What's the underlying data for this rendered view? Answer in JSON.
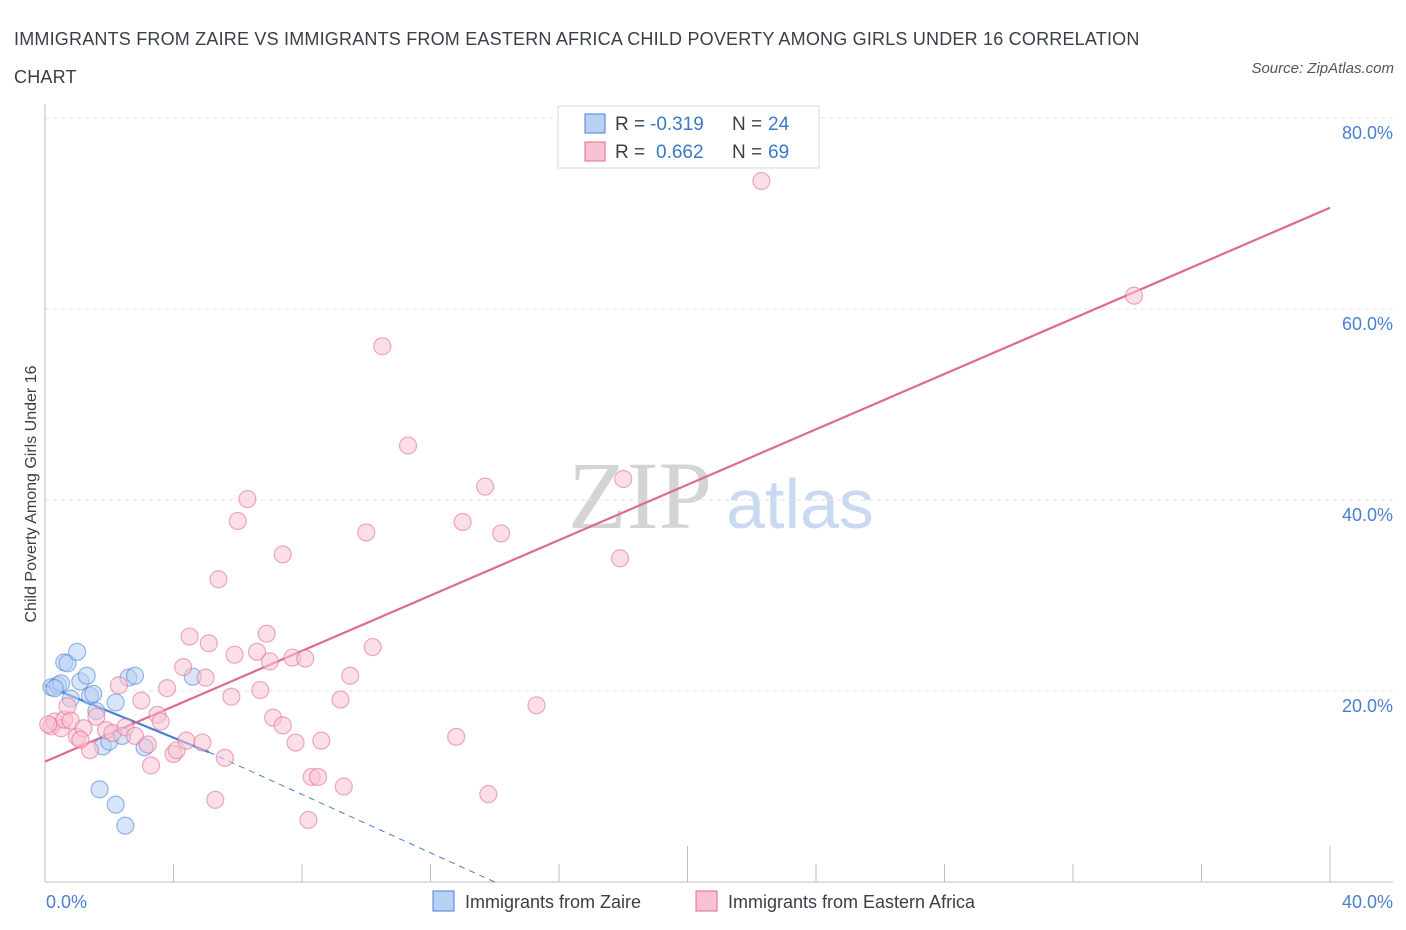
{
  "title": "IMMIGRANTS FROM ZAIRE VS IMMIGRANTS FROM EASTERN AFRICA CHILD POVERTY AMONG GIRLS UNDER 16 CORRELATION CHART",
  "source": "Source: ZipAtlas.com",
  "watermark": {
    "zip": "ZIP",
    "atlas": "atlas"
  },
  "chart_data": {
    "type": "scatter",
    "title": "IMMIGRANTS FROM ZAIRE VS IMMIGRANTS FROM EASTERN AFRICA CHILD POVERTY AMONG GIRLS UNDER 16 CORRELATION CHART",
    "xlabel": "",
    "ylabel": "Child Poverty Among Girls Under 16",
    "xlim": [
      0,
      40
    ],
    "ylim": [
      0,
      80
    ],
    "x_tick_labels": {
      "min": "0.0%",
      "max": "40.0%"
    },
    "y_ticks": [
      {
        "value": 20,
        "label": "20.0%"
      },
      {
        "value": 40,
        "label": "40.0%"
      },
      {
        "value": 60,
        "label": "60.0%"
      },
      {
        "value": 80,
        "label": "80.0%"
      }
    ],
    "legend_stats": [
      {
        "r_label": "R =",
        "r_value": "-0.319",
        "n_label": "N =",
        "n_value": "24"
      },
      {
        "r_label": "R =",
        "r_value": "0.662",
        "n_label": "N =",
        "n_value": "69"
      }
    ],
    "series": [
      {
        "name": "Immigrants from Zaire",
        "color": "#4a7fd4",
        "fill": "#b7d0f4",
        "trend": {
          "x0": 0.0,
          "y0": 20.6,
          "x1": 5.1,
          "y1": 13.6,
          "dash_to_x": 14.0,
          "dash_to_y": 0.0
        },
        "points": [
          [
            0.2,
            20.4
          ],
          [
            0.4,
            20.6
          ],
          [
            0.5,
            20.8
          ],
          [
            0.6,
            23.0
          ],
          [
            0.7,
            22.9
          ],
          [
            0.8,
            19.2
          ],
          [
            1.0,
            24.1
          ],
          [
            1.1,
            21.0
          ],
          [
            1.3,
            21.6
          ],
          [
            1.4,
            19.5
          ],
          [
            1.5,
            19.7
          ],
          [
            1.6,
            17.9
          ],
          [
            1.8,
            14.2
          ],
          [
            2.0,
            14.7
          ],
          [
            2.2,
            18.8
          ],
          [
            2.4,
            15.3
          ],
          [
            2.6,
            21.4
          ],
          [
            2.8,
            21.6
          ],
          [
            3.1,
            14.1
          ],
          [
            4.6,
            21.5
          ],
          [
            1.7,
            9.7
          ],
          [
            2.2,
            8.1
          ],
          [
            2.5,
            5.9
          ],
          [
            0.3,
            20.3
          ]
        ]
      },
      {
        "name": "Immigrants from Eastern Africa",
        "color": "#e0698f",
        "fill": "#f7c3d2",
        "trend": {
          "x0": 0.0,
          "y0": 12.6,
          "x1": 40.0,
          "y1": 70.6
        },
        "points": [
          [
            0.2,
            16.3
          ],
          [
            0.3,
            16.8
          ],
          [
            0.5,
            16.1
          ],
          [
            0.6,
            17.0
          ],
          [
            0.7,
            18.4
          ],
          [
            0.8,
            16.9
          ],
          [
            1.0,
            15.2
          ],
          [
            1.2,
            16.1
          ],
          [
            1.4,
            13.8
          ],
          [
            1.6,
            17.3
          ],
          [
            1.9,
            15.9
          ],
          [
            2.1,
            15.6
          ],
          [
            2.3,
            20.6
          ],
          [
            2.5,
            16.2
          ],
          [
            2.8,
            15.3
          ],
          [
            3.0,
            19.0
          ],
          [
            3.2,
            14.4
          ],
          [
            3.3,
            12.2
          ],
          [
            3.5,
            17.5
          ],
          [
            3.6,
            16.8
          ],
          [
            3.8,
            20.3
          ],
          [
            4.0,
            13.4
          ],
          [
            4.1,
            13.8
          ],
          [
            4.3,
            22.5
          ],
          [
            4.4,
            14.8
          ],
          [
            4.5,
            25.7
          ],
          [
            4.9,
            14.6
          ],
          [
            5.0,
            21.4
          ],
          [
            5.1,
            25.0
          ],
          [
            5.3,
            8.6
          ],
          [
            5.4,
            31.7
          ],
          [
            5.6,
            13.0
          ],
          [
            5.8,
            19.4
          ],
          [
            5.9,
            23.8
          ],
          [
            6.0,
            37.8
          ],
          [
            6.3,
            40.1
          ],
          [
            6.6,
            24.1
          ],
          [
            6.7,
            20.1
          ],
          [
            6.9,
            26.0
          ],
          [
            7.0,
            23.1
          ],
          [
            7.1,
            17.2
          ],
          [
            7.4,
            34.3
          ],
          [
            7.4,
            16.4
          ],
          [
            7.7,
            23.5
          ],
          [
            7.8,
            14.6
          ],
          [
            8.1,
            23.4
          ],
          [
            8.2,
            6.5
          ],
          [
            8.3,
            11.0
          ],
          [
            8.5,
            11.0
          ],
          [
            8.6,
            14.8
          ],
          [
            9.2,
            19.1
          ],
          [
            9.3,
            10.0
          ],
          [
            9.5,
            21.6
          ],
          [
            10.0,
            36.6
          ],
          [
            10.2,
            24.6
          ],
          [
            10.5,
            56.1
          ],
          [
            11.3,
            45.7
          ],
          [
            12.8,
            15.2
          ],
          [
            13.0,
            37.7
          ],
          [
            13.7,
            41.4
          ],
          [
            13.8,
            9.2
          ],
          [
            14.2,
            36.5
          ],
          [
            15.3,
            18.5
          ],
          [
            17.9,
            33.9
          ],
          [
            18.0,
            42.2
          ],
          [
            22.3,
            73.4
          ],
          [
            33.9,
            61.4
          ],
          [
            0.1,
            16.5
          ],
          [
            1.1,
            14.9
          ]
        ]
      }
    ]
  }
}
